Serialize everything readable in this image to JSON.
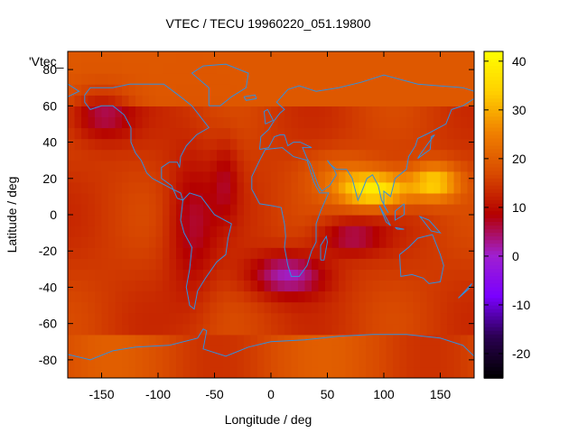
{
  "chart_data": {
    "type": "heatmap",
    "title": "VTEC / TECU 19960220_051.19800",
    "xlabel": "Longitude / deg",
    "ylabel": "Latitude / deg",
    "key_label": "'Vtec_",
    "xlim": [
      -180,
      180
    ],
    "ylim": [
      -90,
      90
    ],
    "xticks": [
      -150,
      -100,
      -50,
      0,
      50,
      100,
      150
    ],
    "yticks": [
      -80,
      -60,
      -40,
      -20,
      0,
      20,
      40,
      60,
      80
    ],
    "colorbar": {
      "range": [
        -25,
        42
      ],
      "ticks": [
        -20,
        -10,
        0,
        10,
        20,
        30,
        40
      ],
      "palette": [
        "#000000",
        "#2a0050",
        "#7a00ff",
        "#a020d0",
        "#b40000",
        "#d84a00",
        "#f08000",
        "#ffd000",
        "#ffff00"
      ]
    },
    "grid": false,
    "legend": "none",
    "overlay": "coastlines",
    "overlay_color": "#3090e0"
  }
}
